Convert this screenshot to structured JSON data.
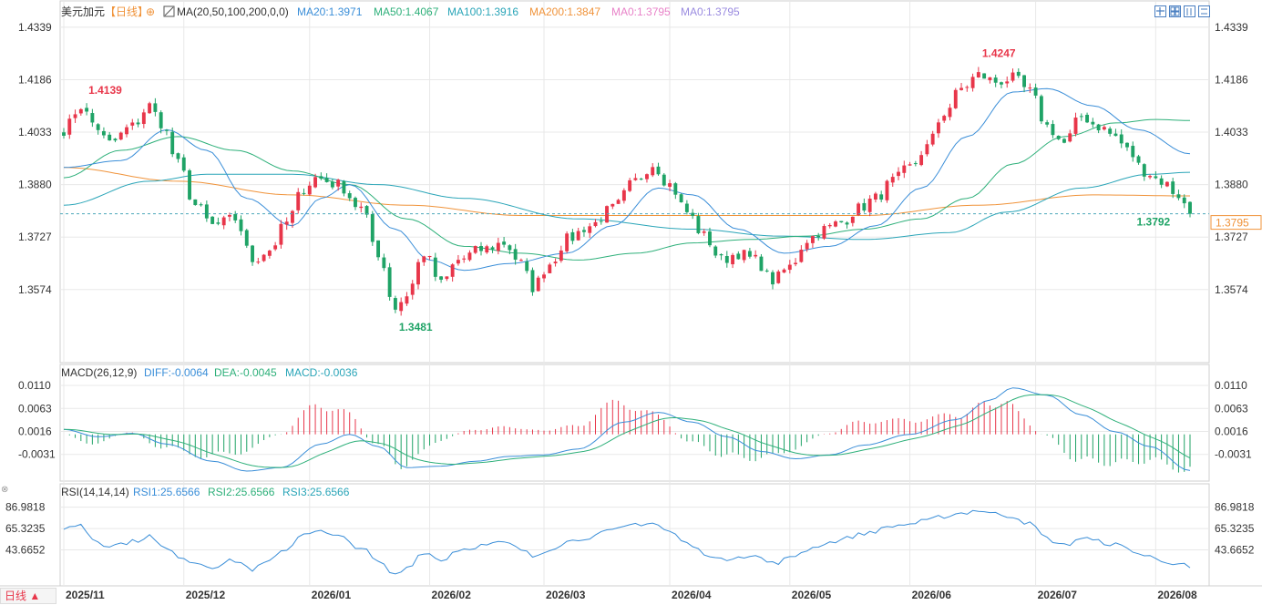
{
  "title": "美元加元",
  "period_tag": "【日线】",
  "period_button": "日线 ▲",
  "colors": {
    "up": "#e8364a",
    "down": "#1fa366",
    "ma20": "#3a8ed8",
    "ma50": "#2eb07a",
    "ma100": "#2aa5b8",
    "ma200": "#f0933a",
    "ma0a": "#e882c8",
    "ma0b": "#9a8be0",
    "diff": "#3a8ed8",
    "dea": "#2eb07a",
    "rsi": "#3a8ed8",
    "grid": "#e8e8e8",
    "price_line": "#4da8ba"
  },
  "legend": {
    "ma_label": "MA(20,50,100,200,0,0)",
    "ma20": "MA20:1.3971",
    "ma50": "MA50:1.4067",
    "ma100": "MA100:1.3916",
    "ma200": "MA200:1.3847",
    "ma0a": "MA0:1.3795",
    "ma0b": "MA0:1.3795",
    "macd_label": "MACD(26,12,9)",
    "diff": "DIFF:-0.0064",
    "dea": "DEA:-0.0045",
    "macd": "MACD:-0.0036",
    "rsi_label": "RSI(14,14,14)",
    "rsi1": "RSI1:25.6566",
    "rsi2": "RSI2:25.6566",
    "rsi3": "RSI3:25.6566"
  },
  "annotations": {
    "high1": "1.4139",
    "high2": "1.4247",
    "low1": "1.3481",
    "low2": "1.3792",
    "last": "1.3795"
  },
  "chart_data": {
    "type": "candlestick",
    "price_ticks": [
      "1.4339",
      "1.4186",
      "1.4033",
      "1.3880",
      "1.3727",
      "1.3574"
    ],
    "price_range": [
      1.3398,
      1.436
    ],
    "macd_ticks": [
      "0.0110",
      "0.0063",
      "0.0016",
      "-0.0031"
    ],
    "macd_range": [
      -0.008,
      0.0125
    ],
    "rsi_ticks": [
      "86.9818",
      "65.3235",
      "43.6652"
    ],
    "rsi_range": [
      10,
      95
    ],
    "x_labels": [
      {
        "label": "2025/11",
        "i": 0
      },
      {
        "label": "2025/12",
        "i": 21
      },
      {
        "label": "2026/01",
        "i": 43
      },
      {
        "label": "2026/02",
        "i": 64
      },
      {
        "label": "2026/03",
        "i": 84
      },
      {
        "label": "2026/04",
        "i": 106
      },
      {
        "label": "2026/05",
        "i": 127
      },
      {
        "label": "2026/06",
        "i": 148
      },
      {
        "label": "2026/07",
        "i": 170
      },
      {
        "label": "2026/08",
        "i": 191
      }
    ],
    "close_anchors": [
      [
        0,
        1.404
      ],
      [
        3,
        1.411
      ],
      [
        5,
        1.406
      ],
      [
        8,
        1.4
      ],
      [
        12,
        1.405
      ],
      [
        15,
        1.411
      ],
      [
        17,
        1.406
      ],
      [
        20,
        1.394
      ],
      [
        23,
        1.382
      ],
      [
        26,
        1.376
      ],
      [
        30,
        1.378
      ],
      [
        33,
        1.366
      ],
      [
        36,
        1.369
      ],
      [
        39,
        1.377
      ],
      [
        42,
        1.387
      ],
      [
        44,
        1.39
      ],
      [
        48,
        1.388
      ],
      [
        52,
        1.381
      ],
      [
        55,
        1.368
      ],
      [
        58,
        1.352
      ],
      [
        60,
        1.356
      ],
      [
        63,
        1.368
      ],
      [
        66,
        1.359
      ],
      [
        69,
        1.366
      ],
      [
        73,
        1.369
      ],
      [
        77,
        1.371
      ],
      [
        80,
        1.365
      ],
      [
        82,
        1.358
      ],
      [
        85,
        1.365
      ],
      [
        88,
        1.372
      ],
      [
        92,
        1.376
      ],
      [
        96,
        1.381
      ],
      [
        100,
        1.389
      ],
      [
        103,
        1.394
      ],
      [
        106,
        1.388
      ],
      [
        109,
        1.38
      ],
      [
        112,
        1.373
      ],
      [
        115,
        1.366
      ],
      [
        118,
        1.368
      ],
      [
        121,
        1.366
      ],
      [
        124,
        1.36
      ],
      [
        127,
        1.364
      ],
      [
        130,
        1.372
      ],
      [
        133,
        1.375
      ],
      [
        136,
        1.377
      ],
      [
        139,
        1.381
      ],
      [
        142,
        1.384
      ],
      [
        145,
        1.389
      ],
      [
        148,
        1.393
      ],
      [
        151,
        1.399
      ],
      [
        154,
        1.409
      ],
      [
        157,
        1.416
      ],
      [
        160,
        1.42
      ],
      [
        163,
        1.418
      ],
      [
        166,
        1.419
      ],
      [
        169,
        1.415
      ],
      [
        172,
        1.405
      ],
      [
        175,
        1.4
      ],
      [
        178,
        1.408
      ],
      [
        181,
        1.405
      ],
      [
        184,
        1.402
      ],
      [
        186,
        1.398
      ],
      [
        189,
        1.392
      ],
      [
        192,
        1.389
      ],
      [
        195,
        1.385
      ],
      [
        197,
        1.379
      ]
    ],
    "ma20_anchors": [
      [
        0,
        1.393
      ],
      [
        10,
        1.395
      ],
      [
        18,
        1.404
      ],
      [
        25,
        1.398
      ],
      [
        32,
        1.384
      ],
      [
        40,
        1.376
      ],
      [
        45,
        1.384
      ],
      [
        50,
        1.388
      ],
      [
        58,
        1.375
      ],
      [
        64,
        1.366
      ],
      [
        70,
        1.363
      ],
      [
        78,
        1.365
      ],
      [
        88,
        1.368
      ],
      [
        96,
        1.376
      ],
      [
        104,
        1.387
      ],
      [
        110,
        1.385
      ],
      [
        118,
        1.375
      ],
      [
        126,
        1.368
      ],
      [
        134,
        1.37
      ],
      [
        142,
        1.376
      ],
      [
        150,
        1.387
      ],
      [
        158,
        1.402
      ],
      [
        166,
        1.415
      ],
      [
        172,
        1.416
      ],
      [
        180,
        1.411
      ],
      [
        188,
        1.404
      ],
      [
        197,
        1.397
      ]
    ],
    "ma50_anchors": [
      [
        0,
        1.39
      ],
      [
        10,
        1.398
      ],
      [
        20,
        1.402
      ],
      [
        30,
        1.398
      ],
      [
        40,
        1.392
      ],
      [
        50,
        1.388
      ],
      [
        60,
        1.378
      ],
      [
        70,
        1.37
      ],
      [
        80,
        1.368
      ],
      [
        90,
        1.366
      ],
      [
        100,
        1.368
      ],
      [
        110,
        1.371
      ],
      [
        120,
        1.372
      ],
      [
        130,
        1.373
      ],
      [
        140,
        1.375
      ],
      [
        150,
        1.378
      ],
      [
        158,
        1.384
      ],
      [
        166,
        1.394
      ],
      [
        175,
        1.402
      ],
      [
        184,
        1.406
      ],
      [
        191,
        1.407
      ],
      [
        197,
        1.4067
      ]
    ],
    "ma100_anchors": [
      [
        0,
        1.382
      ],
      [
        15,
        1.389
      ],
      [
        25,
        1.391
      ],
      [
        40,
        1.391
      ],
      [
        55,
        1.388
      ],
      [
        70,
        1.384
      ],
      [
        90,
        1.378
      ],
      [
        110,
        1.375
      ],
      [
        125,
        1.373
      ],
      [
        140,
        1.372
      ],
      [
        155,
        1.374
      ],
      [
        165,
        1.38
      ],
      [
        178,
        1.387
      ],
      [
        190,
        1.391
      ],
      [
        197,
        1.3916
      ]
    ],
    "ma200_anchors": [
      [
        0,
        1.393
      ],
      [
        20,
        1.389
      ],
      [
        40,
        1.385
      ],
      [
        60,
        1.382
      ],
      [
        80,
        1.379
      ],
      [
        100,
        1.379
      ],
      [
        120,
        1.379
      ],
      [
        140,
        1.379
      ],
      [
        160,
        1.382
      ],
      [
        180,
        1.385
      ],
      [
        197,
        1.3847
      ]
    ],
    "macd_anchors": [
      [
        0,
        0.002
      ],
      [
        6,
        0.0005
      ],
      [
        12,
        0.0012
      ],
      [
        18,
        -0.001
      ],
      [
        26,
        -0.0045
      ],
      [
        32,
        -0.0065
      ],
      [
        38,
        -0.0058
      ],
      [
        45,
        -0.001
      ],
      [
        50,
        0.001
      ],
      [
        55,
        -0.0015
      ],
      [
        60,
        -0.0058
      ],
      [
        66,
        -0.0055
      ],
      [
        72,
        -0.0045
      ],
      [
        78,
        -0.0035
      ],
      [
        84,
        -0.0032
      ],
      [
        90,
        -0.002
      ],
      [
        98,
        0.0035
      ],
      [
        104,
        0.0055
      ],
      [
        110,
        0.0035
      ],
      [
        116,
        0.0005
      ],
      [
        122,
        -0.0025
      ],
      [
        128,
        -0.004
      ],
      [
        134,
        -0.0032
      ],
      [
        140,
        -0.0012
      ],
      [
        148,
        0.001
      ],
      [
        156,
        0.004
      ],
      [
        162,
        0.008
      ],
      [
        166,
        0.0105
      ],
      [
        172,
        0.009
      ],
      [
        178,
        0.005
      ],
      [
        184,
        0.0015
      ],
      [
        190,
        -0.0015
      ],
      [
        197,
        -0.0064
      ]
    ],
    "rsi_anchors": [
      [
        0,
        65
      ],
      [
        3,
        70
      ],
      [
        5,
        55
      ],
      [
        8,
        48
      ],
      [
        12,
        52
      ],
      [
        15,
        58
      ],
      [
        17,
        47
      ],
      [
        20,
        38
      ],
      [
        23,
        31
      ],
      [
        26,
        27
      ],
      [
        30,
        33
      ],
      [
        33,
        24
      ],
      [
        36,
        32
      ],
      [
        39,
        45
      ],
      [
        42,
        61
      ],
      [
        44,
        63
      ],
      [
        48,
        57
      ],
      [
        52,
        46
      ],
      [
        55,
        31
      ],
      [
        58,
        18
      ],
      [
        60,
        26
      ],
      [
        63,
        42
      ],
      [
        66,
        33
      ],
      [
        69,
        44
      ],
      [
        73,
        48
      ],
      [
        77,
        51
      ],
      [
        80,
        44
      ],
      [
        82,
        37
      ],
      [
        85,
        45
      ],
      [
        88,
        52
      ],
      [
        92,
        57
      ],
      [
        96,
        63
      ],
      [
        100,
        70
      ],
      [
        103,
        71
      ],
      [
        106,
        62
      ],
      [
        109,
        50
      ],
      [
        112,
        41
      ],
      [
        115,
        33
      ],
      [
        118,
        38
      ],
      [
        121,
        37
      ],
      [
        124,
        30
      ],
      [
        127,
        35
      ],
      [
        130,
        44
      ],
      [
        133,
        50
      ],
      [
        136,
        54
      ],
      [
        139,
        59
      ],
      [
        142,
        63
      ],
      [
        145,
        68
      ],
      [
        148,
        70
      ],
      [
        151,
        73
      ],
      [
        154,
        78
      ],
      [
        157,
        81
      ],
      [
        160,
        84
      ],
      [
        163,
        80
      ],
      [
        166,
        78
      ],
      [
        169,
        70
      ],
      [
        172,
        55
      ],
      [
        175,
        48
      ],
      [
        178,
        56
      ],
      [
        181,
        52
      ],
      [
        184,
        49
      ],
      [
        186,
        45
      ],
      [
        189,
        38
      ],
      [
        192,
        33
      ],
      [
        195,
        30
      ],
      [
        197,
        25.66
      ]
    ]
  }
}
